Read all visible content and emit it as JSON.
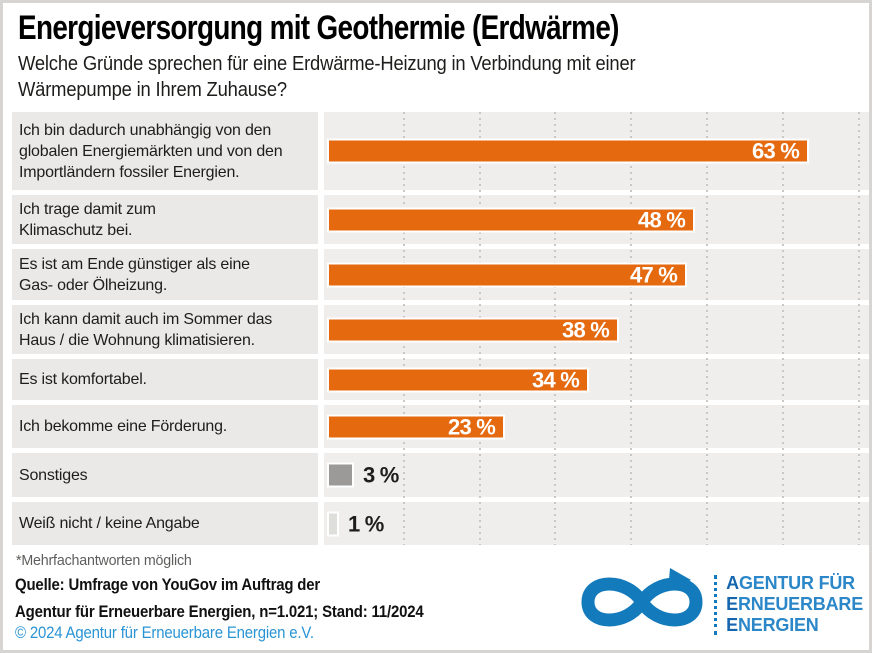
{
  "title": "Energieversorgung mit Geothermie (Erdwärme)",
  "subtitle": "Welche Gründe sprechen für eine Erdwärme-Heizung in Verbindung mit einer\nWärmepumpe in Ihrem Zuhause?",
  "chart_data": {
    "type": "bar",
    "orientation": "horizontal",
    "unit": "percent",
    "categories": [
      "Ich bin dadurch unabhängig von den\nglobalen Energiemärkten und von den\nImportländern fossiler Energien.",
      "Ich trage damit zum\nKlimaschutz bei.",
      "Es ist am Ende günstiger als eine\nGas- oder Ölheizung.",
      "Ich kann damit auch im Sommer das\nHaus / die Wohnung klimatisieren.",
      "Es ist komfortabel.",
      "Ich bekomme eine Förderung.",
      "Sonstiges",
      "Weiß nicht / keine Angabe"
    ],
    "values": [
      63,
      48,
      47,
      38,
      34,
      23,
      3,
      1
    ],
    "value_labels": [
      "63 %",
      "48 %",
      "47 %",
      "38 %",
      "34 %",
      "23 %",
      "3 %",
      "1 %"
    ],
    "bar_colors": [
      "#e5690f",
      "#e5690f",
      "#e5690f",
      "#e5690f",
      "#e5690f",
      "#e5690f",
      "#9b9a98",
      "#dededb"
    ],
    "axis": {
      "min": 0,
      "max": 71,
      "gridline_step": 10,
      "gridlines_visible": true
    },
    "legend_position": "none",
    "outside_label_threshold": 8
  },
  "footnote": "*Mehrfachantworten möglich",
  "source": {
    "line1": "Quelle: Umfrage von YouGov im Auftrag der",
    "line2": "Agentur für Erneuerbare Energien, n=1.021; Stand: 11/2024"
  },
  "copyright": "© 2024 Agentur für Erneuerbare Energien e.V.",
  "logo": {
    "icon": "infinity-arrow-icon",
    "lines": [
      {
        "lead": "A",
        "rest": "GENTUR FÜR"
      },
      {
        "lead": "E",
        "rest": "RNEUERBARE"
      },
      {
        "lead": "E",
        "rest": "NERGIEN"
      }
    ]
  },
  "colors": {
    "bar_orange": "#e5690f",
    "bar_gray": "#9b9a98",
    "bar_light_gray": "#dededb",
    "logo_blue": "#137abc",
    "copyright_blue": "#2994d4",
    "row_label_bg": "#eae9e7",
    "track_bg": "#efeeec",
    "frame_border": "#d6d5d3"
  }
}
